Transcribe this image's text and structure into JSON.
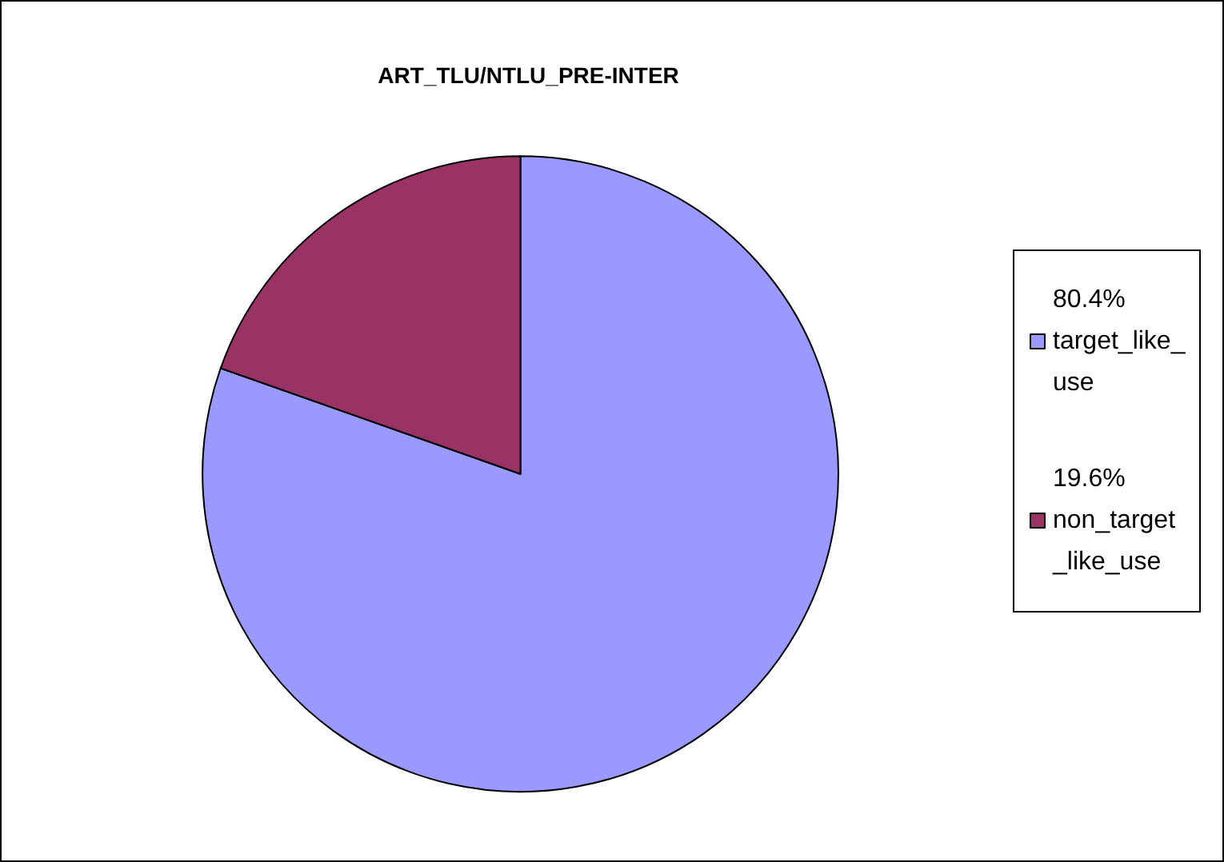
{
  "chart_data": {
    "type": "pie",
    "title": "ART_TLU/NTLU_PRE-INTER",
    "categories": [
      "target_like_use",
      "non_target_like_use"
    ],
    "values": [
      80.4,
      19.6
    ],
    "value_labels": [
      "80.4%",
      "19.6%"
    ],
    "colors": [
      "#9999ff",
      "#993366"
    ],
    "legend": "right"
  }
}
